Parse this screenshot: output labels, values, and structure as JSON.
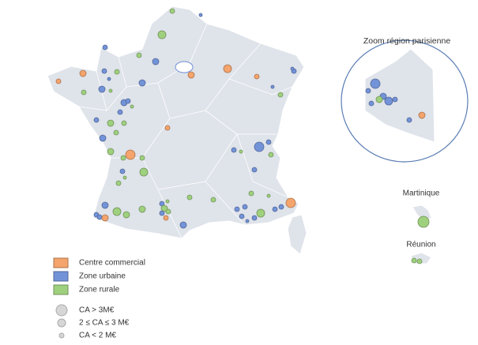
{
  "inset": {
    "title": "Zoom région parisienne"
  },
  "overseas": [
    "Martinique",
    "Réunion"
  ],
  "legend": {
    "types": [
      {
        "label": "Centre commercial",
        "color": "#f4a46c"
      },
      {
        "label": "Zone urbaine",
        "color": "#7393d8"
      },
      {
        "label": "Zone rurale",
        "color": "#9fd07e"
      }
    ],
    "sizes": [
      "CA > 3M€",
      "2 ≤ CA ≤ 3 M€",
      "CA < 2 M€"
    ]
  }
}
